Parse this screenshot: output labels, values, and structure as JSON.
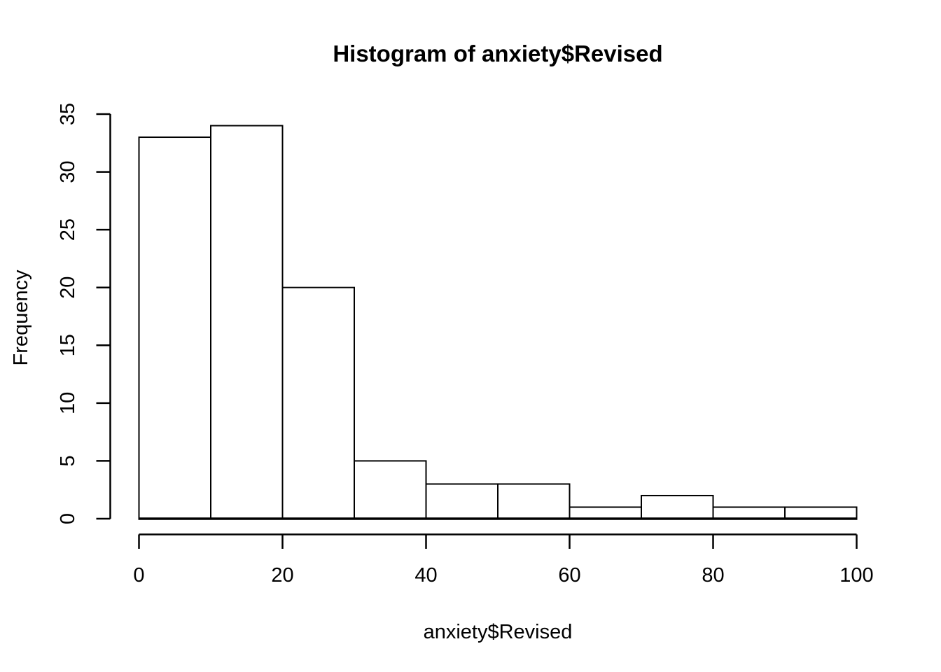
{
  "chart_data": {
    "type": "bar",
    "subtype": "histogram",
    "title": "Histogram of anxiety$Revised",
    "xlabel": "anxiety$Revised",
    "ylabel": "Frequency",
    "bin_width": 10,
    "bin_edges": [
      0,
      10,
      20,
      30,
      40,
      50,
      60,
      70,
      80,
      90,
      100
    ],
    "categories": [
      "0-10",
      "10-20",
      "20-30",
      "30-40",
      "40-50",
      "50-60",
      "60-70",
      "70-80",
      "80-90",
      "90-100"
    ],
    "values": [
      33,
      34,
      20,
      5,
      3,
      3,
      1,
      2,
      1,
      1
    ],
    "x_ticks": [
      0,
      20,
      40,
      60,
      80,
      100
    ],
    "y_ticks": [
      0,
      5,
      10,
      15,
      20,
      25,
      30,
      35
    ],
    "xlim": [
      0,
      100
    ],
    "ylim": [
      0,
      35
    ],
    "grid": false,
    "legend": "none",
    "bar_fill": "#ffffff",
    "bar_stroke": "#000000",
    "axis_color": "#000000",
    "text_color": "#000000",
    "background": "#ffffff"
  }
}
